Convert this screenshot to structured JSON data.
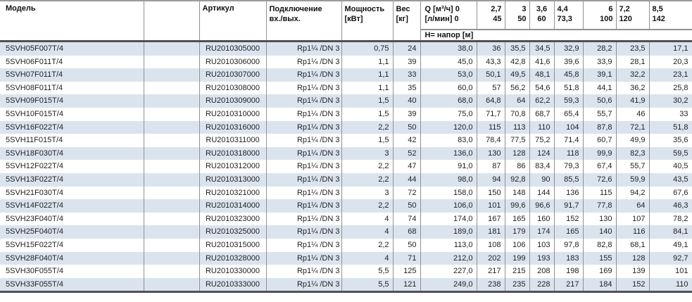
{
  "colors": {
    "stripe_blue": "#dbe4ee",
    "grid_line": "#919191",
    "thick_line": "#515151",
    "text": "#1f1f1f"
  },
  "table": {
    "columns": {
      "model": "Модель",
      "article": "Артикул",
      "connection_line1": "Подключение",
      "connection_line2": "вх./вых.",
      "power_line1": "Мощность",
      "power_line2": "[кВт]",
      "weight_line1": "Вес",
      "weight_line2": "[кг]",
      "q_line1": "Q [м³/ч] 0",
      "q_line2": "[л/мин] 0",
      "head_row_label": "Н= напор [м]",
      "flow_points": [
        {
          "m3h": "2,7",
          "lmin": "45"
        },
        {
          "m3h": "3",
          "lmin": "50"
        },
        {
          "m3h": "3,6",
          "lmin": "60"
        },
        {
          "m3h": "4,4",
          "lmin": "73,3"
        },
        {
          "m3h": "6",
          "lmin": "100"
        },
        {
          "m3h": "7,2",
          "lmin": "120"
        },
        {
          "m3h": "8,5",
          "lmin": "142"
        }
      ]
    },
    "rows": [
      {
        "model": "5SVH05F007T/4",
        "article": "RU2010305000",
        "connection": "Rp1¼ /DN 3",
        "power": "0,75",
        "weight": "24",
        "q0": "38,0",
        "head": [
          "36",
          "35,5",
          "34,5",
          "32,9",
          "28,2",
          "23,5",
          "17,1"
        ]
      },
      {
        "model": "5SVH06F011T/4",
        "article": "RU2010306000",
        "connection": "Rp1¼ /DN 3",
        "power": "1,1",
        "weight": "39",
        "q0": "45,0",
        "head": [
          "43,3",
          "42,8",
          "41,6",
          "39,6",
          "33,9",
          "28,1",
          "20,3"
        ]
      },
      {
        "model": "5SVH07F011T/4",
        "article": "RU2010307000",
        "connection": "Rp1¼ /DN 3",
        "power": "1,1",
        "weight": "33",
        "q0": "53,0",
        "head": [
          "50,1",
          "49,5",
          "48,1",
          "45,8",
          "39,1",
          "32,2",
          "23,1"
        ]
      },
      {
        "model": "5SVH08F011T/4",
        "article": "RU2010308000",
        "connection": "Rp1¼ /DN 3",
        "power": "1,1",
        "weight": "35",
        "q0": "60,0",
        "head": [
          "57",
          "56,2",
          "54,6",
          "51,8",
          "44,1",
          "36,2",
          "25,8"
        ]
      },
      {
        "model": "5SVH09F015T/4",
        "article": "RU2010309000",
        "connection": "Rp1¼ /DN 3",
        "power": "1,5",
        "weight": "40",
        "q0": "68,0",
        "head": [
          "64,8",
          "64",
          "62,2",
          "59,3",
          "50,6",
          "41,9",
          "30,2"
        ]
      },
      {
        "model": "5SVH10F015T/4",
        "article": "RU2010310000",
        "connection": "Rp1¼ /DN 3",
        "power": "1,5",
        "weight": "39",
        "q0": "75,0",
        "head": [
          "71,7",
          "70,8",
          "68,7",
          "65,4",
          "55,7",
          "46",
          "33"
        ]
      },
      {
        "model": "5SVH16F022T/4",
        "article": "RU2010316000",
        "connection": "Rp1¼ /DN 3",
        "power": "2,2",
        "weight": "50",
        "q0": "120,0",
        "head": [
          "115",
          "113",
          "110",
          "104",
          "87,8",
          "72,1",
          "51,8"
        ]
      },
      {
        "model": "5SVH11F015T/4",
        "article": "RU2010311000",
        "connection": "Rp1¼ /DN 3",
        "power": "1,5",
        "weight": "42",
        "q0": "83,0",
        "head": [
          "78,4",
          "77,5",
          "75,2",
          "71,4",
          "60,7",
          "49,9",
          "35,6"
        ]
      },
      {
        "model": "5SVH18F030T/4",
        "article": "RU2010318000",
        "connection": "Rp1¼ /DN 3",
        "power": "3",
        "weight": "52",
        "q0": "136,0",
        "head": [
          "130",
          "128",
          "124",
          "118",
          "99,9",
          "82,3",
          "59,5"
        ]
      },
      {
        "model": "5SVH12F022T/4",
        "article": "RU2010312000",
        "connection": "Rp1¼ /DN 3",
        "power": "2,2",
        "weight": "47",
        "q0": "91,0",
        "head": [
          "87",
          "86",
          "83,4",
          "79,3",
          "67,4",
          "55,7",
          "40,5"
        ]
      },
      {
        "model": "5SVH13F022T/4",
        "article": "RU2010313000",
        "connection": "Rp1¼ /DN 3",
        "power": "2,2",
        "weight": "44",
        "q0": "98,0",
        "head": [
          "94",
          "92,8",
          "90",
          "85,5",
          "72,6",
          "59,9",
          "43,5"
        ]
      },
      {
        "model": "5SVH21F030T/4",
        "article": "RU2010321000",
        "connection": "Rp1¼ /DN 3",
        "power": "3",
        "weight": "72",
        "q0": "158,0",
        "head": [
          "150",
          "148",
          "144",
          "136",
          "115",
          "94,2",
          "67,6"
        ]
      },
      {
        "model": "5SVH14F022T/4",
        "article": "RU2010314000",
        "connection": "Rp1¼ /DN 3",
        "power": "2,2",
        "weight": "50",
        "q0": "106,0",
        "head": [
          "101",
          "99,6",
          "96,6",
          "91,7",
          "77,8",
          "64",
          "46,3"
        ]
      },
      {
        "model": "5SVH23F040T/4",
        "article": "RU2010323000",
        "connection": "Rp1¼ /DN 3",
        "power": "4",
        "weight": "74",
        "q0": "174,0",
        "head": [
          "167",
          "165",
          "160",
          "152",
          "130",
          "107",
          "78,2"
        ]
      },
      {
        "model": "5SVH25F040T/4",
        "article": "RU2010325000",
        "connection": "Rp1¼ /DN 3",
        "power": "4",
        "weight": "68",
        "q0": "189,0",
        "head": [
          "181",
          "179",
          "174",
          "165",
          "140",
          "116",
          "84,1"
        ]
      },
      {
        "model": "5SVH15F022T/4",
        "article": "RU2010315000",
        "connection": "Rp1¼ /DN 3",
        "power": "2,2",
        "weight": "50",
        "q0": "113,0",
        "head": [
          "108",
          "106",
          "103",
          "97,8",
          "82,8",
          "68,1",
          "49,1"
        ]
      },
      {
        "model": "5SVH28F040T/4",
        "article": "RU2010328000",
        "connection": "Rp1¼ /DN 3",
        "power": "4",
        "weight": "71",
        "q0": "212,0",
        "head": [
          "202",
          "199",
          "193",
          "183",
          "155",
          "128",
          "92,7"
        ]
      },
      {
        "model": "5SVH30F055T/4",
        "article": "RU2010330000",
        "connection": "Rp1¼ /DN 3",
        "power": "5,5",
        "weight": "125",
        "q0": "227,0",
        "head": [
          "217",
          "215",
          "208",
          "198",
          "169",
          "139",
          "101"
        ]
      },
      {
        "model": "5SVH33F055T/4",
        "article": "RU2010333000",
        "connection": "Rp1¼ /DN 3",
        "power": "5,5",
        "weight": "121",
        "q0": "249,0",
        "head": [
          "238",
          "235",
          "228",
          "217",
          "184",
          "152",
          "110"
        ]
      }
    ]
  }
}
